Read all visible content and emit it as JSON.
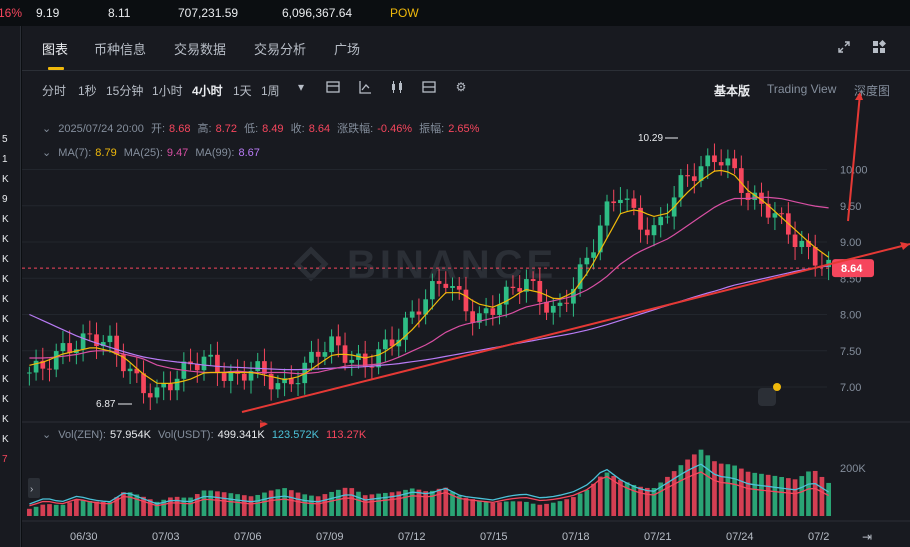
{
  "topbar": {
    "change_pct": "16%",
    "v1": "9.19",
    "v2": "8.11",
    "v3": "707,231.59",
    "v4": "6,096,367.64",
    "tag": "POW"
  },
  "left_strip": {
    "items": [
      "5",
      "1",
      "K",
      "9",
      "K",
      "K",
      "K",
      "K",
      "K",
      "K",
      "K",
      "K",
      "K",
      "K",
      "K",
      "K",
      "7"
    ]
  },
  "tabs": [
    {
      "label": "图表",
      "active": true
    },
    {
      "label": "币种信息"
    },
    {
      "label": "交易数据"
    },
    {
      "label": "交易分析"
    },
    {
      "label": "广场"
    }
  ],
  "header_icons": [
    "expand-icon",
    "grid-icon"
  ],
  "toolbar": {
    "intervals": [
      "分时",
      "1秒",
      "15分钟",
      "1小时",
      "4小时",
      "1天",
      "1周"
    ],
    "active_interval": "4小时",
    "views": [
      "基本版",
      "Trading View",
      "深度图"
    ],
    "active_view": "基本版"
  },
  "ohlc": {
    "time": "2025/07/24 20:00",
    "open_label": "开:",
    "open": "8.68",
    "high_label": "高:",
    "high": "8.72",
    "low_label": "低:",
    "low": "8.49",
    "close_label": "收:",
    "close": "8.64",
    "change_label": "涨跌幅:",
    "change": "-0.46%",
    "amp_label": "振幅:",
    "amp": "2.65%"
  },
  "ma": {
    "ma7_label": "MA(7):",
    "ma7": "8.79",
    "ma25_label": "MA(25):",
    "ma25": "9.47",
    "ma99_label": "MA(99):",
    "ma99": "8.67"
  },
  "volume_info": {
    "vol_zen_label": "Vol(ZEN):",
    "vol_zen": "57.954K",
    "vol_usdt_label": "Vol(USDT):",
    "vol_usdt": "499.341K",
    "ma_a": "123.572K",
    "ma_b": "113.27K"
  },
  "colors": {
    "up": "#2ebd85",
    "down": "#f6465d",
    "ma7": "#f0b90b",
    "ma25": "#d84fa3",
    "ma99": "#b87bf5",
    "accent": "#f0b90b"
  },
  "chart_data": {
    "type": "candlestick",
    "y_ticks": [
      "10.00",
      "9.50",
      "9.00",
      "8.50",
      "8.00",
      "7.50",
      "7.00"
    ],
    "x_ticks": [
      "06/30",
      "07/03",
      "07/06",
      "07/09",
      "07/12",
      "07/15",
      "07/18",
      "07/21",
      "07/24",
      "07/2"
    ],
    "vol_tick": "200K",
    "price_tag": "8.64",
    "max_label": "10.29",
    "min_label": "6.87",
    "ylim": [
      6.6,
      10.6
    ],
    "watermark": "BINANCE",
    "close_path": [
      7.2,
      7.3,
      7.5,
      7.6,
      7.7,
      7.6,
      7.3,
      7.0,
      6.9,
      7.1,
      7.3,
      7.4,
      7.2,
      7.1,
      7.3,
      7.1,
      7.0,
      7.2,
      7.5,
      7.6,
      7.4,
      7.3,
      7.5,
      7.7,
      8.0,
      8.3,
      8.5,
      8.2,
      7.9,
      8.1,
      8.3,
      8.5,
      8.2,
      8.0,
      8.4,
      8.8,
      9.4,
      9.7,
      9.3,
      9.1,
      9.5,
      9.9,
      10.0,
      10.2,
      10.0,
      9.6,
      9.5,
      9.3,
      9.0,
      8.8,
      8.64
    ],
    "ma7_path": [
      7.3,
      7.35,
      7.45,
      7.5,
      7.55,
      7.5,
      7.4,
      7.2,
      7.05,
      7.05,
      7.1,
      7.2,
      7.2,
      7.2,
      7.2,
      7.15,
      7.1,
      7.15,
      7.3,
      7.45,
      7.45,
      7.4,
      7.45,
      7.6,
      7.8,
      8.05,
      8.3,
      8.3,
      8.15,
      8.1,
      8.2,
      8.35,
      8.3,
      8.2,
      8.3,
      8.6,
      9.0,
      9.4,
      9.45,
      9.35,
      9.4,
      9.65,
      9.85,
      10.0,
      9.95,
      9.7,
      9.55,
      9.35,
      9.15,
      8.95,
      8.79
    ],
    "ma25_path": [
      7.4,
      7.4,
      7.42,
      7.45,
      7.5,
      7.5,
      7.45,
      7.4,
      7.3,
      7.25,
      7.22,
      7.2,
      7.2,
      7.22,
      7.2,
      7.2,
      7.2,
      7.18,
      7.2,
      7.25,
      7.3,
      7.3,
      7.32,
      7.4,
      7.5,
      7.6,
      7.75,
      7.85,
      7.9,
      7.95,
      8.0,
      8.1,
      8.15,
      8.2,
      8.25,
      8.35,
      8.5,
      8.7,
      8.85,
      8.95,
      9.05,
      9.2,
      9.35,
      9.5,
      9.6,
      9.6,
      9.62,
      9.6,
      9.55,
      9.5,
      9.47
    ],
    "ma99_path": [
      8.0,
      7.9,
      7.8,
      7.7,
      7.62,
      7.55,
      7.48,
      7.42,
      7.38,
      7.35,
      7.33,
      7.3,
      7.28,
      7.27,
      7.26,
      7.25,
      7.24,
      7.24,
      7.25,
      7.26,
      7.27,
      7.28,
      7.3,
      7.32,
      7.35,
      7.38,
      7.42,
      7.46,
      7.5,
      7.54,
      7.58,
      7.62,
      7.66,
      7.7,
      7.74,
      7.79,
      7.85,
      7.92,
      7.99,
      8.06,
      8.13,
      8.2,
      8.27,
      8.33,
      8.4,
      8.45,
      8.5,
      8.55,
      8.6,
      8.64,
      8.67
    ],
    "volumes": [
      30,
      45,
      35,
      50,
      40,
      35,
      60,
      45,
      30,
      40,
      35,
      50,
      45,
      40,
      35,
      45,
      50,
      40,
      35,
      45,
      55,
      40,
      45,
      50,
      60,
      55,
      70,
      50,
      45,
      40,
      50,
      55,
      45,
      50,
      60,
      80,
      120,
      90,
      70,
      60,
      85,
      110,
      130,
      100,
      95,
      80,
      75,
      70,
      65,
      85,
      60
    ]
  }
}
